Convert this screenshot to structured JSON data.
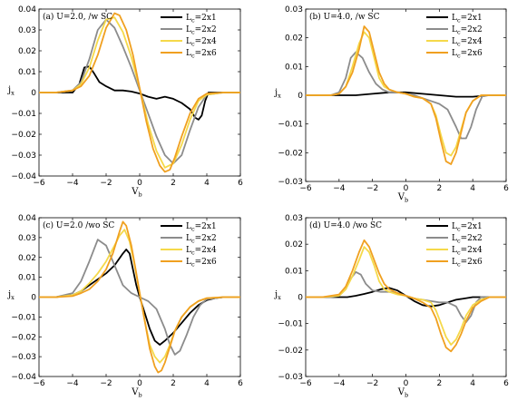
{
  "chart_data": [
    {
      "type": "line",
      "title": "(a) U=2.0, /w SC",
      "xlabel": "V_b",
      "ylabel": "j_x",
      "xlim": [
        -6,
        6
      ],
      "ylim": [
        -0.04,
        0.04
      ],
      "xticks": [
        -6,
        -4,
        -2,
        0,
        2,
        4,
        6
      ],
      "yticks": [
        -0.04,
        -0.03,
        -0.02,
        -0.01,
        0,
        0.01,
        0.02,
        0.03,
        0.04
      ],
      "ytick_labels": [
        "−0.04",
        "−0.03",
        "−0.02",
        "−0.01",
        "0",
        "0.01",
        "0.02",
        "0.03",
        "0.04"
      ],
      "legend_position": "top-right",
      "series": [
        {
          "name": "L_c=2x1",
          "color": "#000000",
          "x": [
            -6,
            -4,
            -3.6,
            -3.3,
            -3.0,
            -2.7,
            -2.4,
            -2.0,
            -1.5,
            -1.0,
            -0.5,
            0,
            0.5,
            1.0,
            1.5,
            2.0,
            2.5,
            3.0,
            3.3,
            3.5,
            3.7,
            3.9,
            4.1,
            6
          ],
          "y": [
            0,
            0,
            0.004,
            0.012,
            0.0125,
            0.009,
            0.005,
            0.003,
            0.001,
            0.001,
            0.0005,
            -0.0005,
            -0.002,
            -0.003,
            -0.002,
            -0.003,
            -0.005,
            -0.008,
            -0.012,
            -0.013,
            -0.011,
            -0.004,
            0,
            0
          ]
        },
        {
          "name": "L_c=2x2",
          "color": "#8c8c8c",
          "x": [
            -6,
            -5,
            -4,
            -3.5,
            -3.0,
            -2.5,
            -2.0,
            -1.5,
            -1.0,
            -0.5,
            0,
            0.5,
            1.0,
            1.5,
            2.0,
            2.5,
            3.0,
            3.5,
            4.0,
            5.0,
            6
          ],
          "y": [
            0,
            0,
            0.001,
            0.005,
            0.016,
            0.03,
            0.035,
            0.031,
            0.022,
            0.012,
            0.001,
            -0.01,
            -0.021,
            -0.03,
            -0.034,
            -0.03,
            -0.018,
            -0.007,
            -0.001,
            0,
            0
          ]
        },
        {
          "name": "L_c=2x4",
          "color": "#f5d94a",
          "x": [
            -6,
            -5,
            -4,
            -3.5,
            -3.0,
            -2.5,
            -2.0,
            -1.5,
            -1.0,
            -0.5,
            0,
            0.5,
            1.0,
            1.5,
            2.0,
            2.5,
            3.0,
            3.5,
            4.0,
            5.0,
            6
          ],
          "y": [
            0,
            0,
            0.001,
            0.004,
            0.012,
            0.025,
            0.035,
            0.036,
            0.029,
            0.017,
            0.002,
            -0.015,
            -0.028,
            -0.036,
            -0.034,
            -0.025,
            -0.013,
            -0.004,
            -0.001,
            0,
            0
          ]
        },
        {
          "name": "L_c=2x6",
          "color": "#f0a020",
          "x": [
            -6,
            -5,
            -4,
            -3.5,
            -3.0,
            -2.5,
            -2.0,
            -1.5,
            -1.2,
            -0.8,
            -0.4,
            0,
            0.4,
            0.8,
            1.2,
            1.5,
            1.8,
            2.1,
            2.5,
            3.0,
            3.5,
            4.0,
            5.0,
            6
          ],
          "y": [
            0,
            0,
            0.001,
            0.003,
            0.008,
            0.018,
            0.031,
            0.038,
            0.037,
            0.03,
            0.018,
            0.002,
            -0.014,
            -0.027,
            -0.035,
            -0.038,
            -0.037,
            -0.031,
            -0.021,
            -0.01,
            -0.003,
            -0.0005,
            0,
            0
          ]
        }
      ]
    },
    {
      "type": "line",
      "title": "(b) U=4.0, /w SC",
      "xlabel": "V_b",
      "ylabel": "j_x",
      "xlim": [
        -6,
        6
      ],
      "ylim": [
        -0.03,
        0.03
      ],
      "xticks": [
        -6,
        -4,
        -2,
        0,
        2,
        4,
        6
      ],
      "yticks": [
        -0.03,
        -0.02,
        -0.01,
        0,
        0.01,
        0.02,
        0.03
      ],
      "ytick_labels": [
        "−0.03",
        "−0.02",
        "−0.01",
        "0",
        "0.01",
        "0.02",
        "0.03"
      ],
      "legend_position": "top-right",
      "series": [
        {
          "name": "L_c=2x1",
          "color": "#000000",
          "x": [
            -6,
            -4,
            -3,
            -2,
            -1,
            0,
            1,
            2,
            3,
            4,
            5,
            6
          ],
          "y": [
            0,
            0,
            0,
            0.0005,
            0.001,
            0.001,
            0.0005,
            0,
            -0.0005,
            -0.0005,
            0,
            0
          ]
        },
        {
          "name": "L_c=2x2",
          "color": "#8c8c8c",
          "x": [
            -6,
            -4.5,
            -4.0,
            -3.6,
            -3.3,
            -3.0,
            -2.6,
            -2.2,
            -1.8,
            -1.4,
            -1.0,
            -0.5,
            0,
            0.5,
            1.0,
            1.5,
            2.0,
            2.5,
            3.0,
            3.3,
            3.6,
            3.9,
            4.2,
            4.6,
            6
          ],
          "y": [
            0,
            0,
            0.001,
            0.006,
            0.013,
            0.015,
            0.013,
            0.008,
            0.004,
            0.002,
            0.001,
            0.001,
            0.0005,
            0,
            -0.001,
            -0.002,
            -0.003,
            -0.005,
            -0.011,
            -0.015,
            -0.015,
            -0.011,
            -0.005,
            0,
            0
          ]
        },
        {
          "name": "L_c=2x4",
          "color": "#f5d94a",
          "x": [
            -6,
            -4.5,
            -4.0,
            -3.6,
            -3.2,
            -2.8,
            -2.5,
            -2.2,
            -1.9,
            -1.6,
            -1.3,
            -1.0,
            -0.5,
            0,
            0.5,
            1.0,
            1.5,
            1.8,
            2.1,
            2.4,
            2.7,
            3.0,
            3.3,
            3.6,
            4.0,
            4.5,
            6
          ],
          "y": [
            0,
            0,
            0.0005,
            0.003,
            0.01,
            0.018,
            0.022,
            0.02,
            0.013,
            0.006,
            0.003,
            0.002,
            0.001,
            0.0005,
            -0.0005,
            -0.001,
            -0.003,
            -0.007,
            -0.014,
            -0.02,
            -0.021,
            -0.018,
            -0.012,
            -0.006,
            -0.002,
            0,
            0
          ]
        },
        {
          "name": "L_c=2x6",
          "color": "#f0a020",
          "x": [
            -6,
            -4.5,
            -4.0,
            -3.6,
            -3.2,
            -2.8,
            -2.5,
            -2.2,
            -1.9,
            -1.6,
            -1.3,
            -1.0,
            -0.5,
            0,
            0.5,
            1.0,
            1.5,
            1.8,
            2.1,
            2.4,
            2.7,
            3.0,
            3.3,
            3.6,
            4.0,
            4.5,
            6
          ],
          "y": [
            0,
            0,
            0.0005,
            0.003,
            0.008,
            0.016,
            0.024,
            0.022,
            0.015,
            0.008,
            0.004,
            0.002,
            0.001,
            0.0005,
            -0.0005,
            -0.001,
            -0.003,
            -0.008,
            -0.016,
            -0.023,
            -0.024,
            -0.02,
            -0.013,
            -0.006,
            -0.002,
            0,
            0
          ]
        }
      ]
    },
    {
      "type": "line",
      "title": "(c) U=2.0 /wo SC",
      "xlabel": "V_b",
      "ylabel": "j_x",
      "xlim": [
        -6,
        6
      ],
      "ylim": [
        -0.04,
        0.04
      ],
      "xticks": [
        -6,
        -4,
        -2,
        0,
        2,
        4,
        6
      ],
      "yticks": [
        -0.04,
        -0.03,
        -0.02,
        -0.01,
        0,
        0.01,
        0.02,
        0.03,
        0.04
      ],
      "ytick_labels": [
        "−0.04",
        "−0.03",
        "−0.02",
        "−0.01",
        "0",
        "0.01",
        "0.02",
        "0.03",
        "0.04"
      ],
      "legend_position": "top-right",
      "series": [
        {
          "name": "L_c=2x1",
          "color": "#000000",
          "x": [
            -6,
            -5,
            -4,
            -3.5,
            -3.0,
            -2.5,
            -2.0,
            -1.5,
            -1.0,
            -0.8,
            -0.6,
            -0.4,
            -0.2,
            0,
            0.3,
            0.6,
            0.9,
            1.2,
            1.5,
            2.0,
            2.5,
            3.0,
            3.5,
            4.0,
            4.5,
            5.0,
            6
          ],
          "y": [
            0,
            0,
            0.001,
            0.003,
            0.006,
            0.009,
            0.012,
            0.016,
            0.022,
            0.024,
            0.022,
            0.014,
            0.006,
            0,
            -0.008,
            -0.016,
            -0.022,
            -0.024,
            -0.022,
            -0.018,
            -0.013,
            -0.008,
            -0.004,
            -0.0015,
            -0.0005,
            0,
            0
          ]
        },
        {
          "name": "L_c=2x2",
          "color": "#8c8c8c",
          "x": [
            -6,
            -5,
            -4,
            -3.5,
            -3.0,
            -2.5,
            -2.0,
            -1.5,
            -1.0,
            -0.5,
            0,
            0.5,
            1.0,
            1.5,
            1.8,
            2.1,
            2.4,
            2.8,
            3.2,
            3.6,
            4.0,
            5.0,
            6
          ],
          "y": [
            0,
            0,
            0.002,
            0.008,
            0.018,
            0.029,
            0.026,
            0.016,
            0.006,
            0.002,
            0,
            -0.002,
            -0.006,
            -0.016,
            -0.024,
            -0.029,
            -0.027,
            -0.019,
            -0.01,
            -0.004,
            -0.001,
            0,
            0
          ]
        },
        {
          "name": "L_c=2x4",
          "color": "#f5d94a",
          "x": [
            -6,
            -5,
            -4,
            -3.5,
            -3.0,
            -2.5,
            -2.0,
            -1.5,
            -1.2,
            -0.9,
            -0.6,
            -0.3,
            0,
            0.3,
            0.6,
            0.9,
            1.2,
            1.5,
            1.8,
            2.1,
            2.5,
            3.0,
            3.5,
            4.0,
            5.0,
            6
          ],
          "y": [
            0,
            0,
            0.001,
            0.003,
            0.007,
            0.012,
            0.018,
            0.026,
            0.031,
            0.034,
            0.028,
            0.016,
            0.002,
            -0.012,
            -0.024,
            -0.03,
            -0.033,
            -0.03,
            -0.024,
            -0.017,
            -0.01,
            -0.005,
            -0.002,
            -0.0005,
            0,
            0
          ]
        },
        {
          "name": "L_c=2x6",
          "color": "#f0a020",
          "x": [
            -6,
            -5,
            -4,
            -3.5,
            -3.0,
            -2.5,
            -2.0,
            -1.6,
            -1.2,
            -1.0,
            -0.8,
            -0.5,
            -0.2,
            0,
            0.3,
            0.6,
            0.9,
            1.1,
            1.3,
            1.5,
            1.8,
            2.1,
            2.5,
            3.0,
            3.5,
            4.0,
            5.0,
            6
          ],
          "y": [
            0,
            0,
            0.0005,
            0.002,
            0.004,
            0.008,
            0.014,
            0.022,
            0.033,
            0.038,
            0.036,
            0.026,
            0.012,
            0.002,
            -0.012,
            -0.026,
            -0.035,
            -0.038,
            -0.037,
            -0.033,
            -0.025,
            -0.017,
            -0.01,
            -0.005,
            -0.002,
            -0.0005,
            0,
            0
          ]
        }
      ]
    },
    {
      "type": "line",
      "title": "(d) U=4.0 /wo SC",
      "xlabel": "V_b",
      "ylabel": "j_x",
      "xlim": [
        -6,
        6
      ],
      "ylim": [
        -0.03,
        0.03
      ],
      "xticks": [
        -6,
        -4,
        -2,
        0,
        2,
        4,
        6
      ],
      "yticks": [
        -0.03,
        -0.02,
        -0.01,
        0,
        0.01,
        0.02,
        0.03
      ],
      "ytick_labels": [
        "−0.03",
        "−0.02",
        "−0.01",
        "0",
        "0.01",
        "0.02",
        "0.03"
      ],
      "legend_position": "top-right",
      "series": [
        {
          "name": "L_c=2x1",
          "color": "#000000",
          "x": [
            -6,
            -5,
            -4,
            -3.5,
            -3.0,
            -2.5,
            -2.0,
            -1.5,
            -1.0,
            -0.5,
            0,
            0.5,
            1.0,
            1.5,
            2.0,
            2.5,
            3.0,
            3.5,
            4.0,
            4.5,
            5.0,
            6
          ],
          "y": [
            0,
            0,
            0,
            0,
            0.0005,
            0.0012,
            0.002,
            0.003,
            0.0035,
            0.0025,
            0.0005,
            -0.0015,
            -0.003,
            -0.0035,
            -0.003,
            -0.002,
            -0.001,
            -0.0005,
            0,
            0,
            0,
            0
          ]
        },
        {
          "name": "L_c=2x2",
          "color": "#8c8c8c",
          "x": [
            -6,
            -4.5,
            -4.0,
            -3.6,
            -3.3,
            -3.0,
            -2.7,
            -2.4,
            -2.0,
            -1.5,
            -1.0,
            -0.5,
            0,
            0.5,
            1.0,
            1.5,
            2.0,
            2.5,
            3.0,
            3.3,
            3.6,
            3.9,
            4.2,
            4.5,
            6
          ],
          "y": [
            0,
            0,
            0.0005,
            0.003,
            0.007,
            0.0095,
            0.0085,
            0.005,
            0.0025,
            0.002,
            0.002,
            0.0015,
            0.0005,
            -0.0005,
            -0.001,
            -0.0015,
            -0.002,
            -0.002,
            -0.0035,
            -0.007,
            -0.0095,
            -0.007,
            -0.002,
            0,
            0
          ]
        },
        {
          "name": "L_c=2x4",
          "color": "#f5d94a",
          "x": [
            -6,
            -5,
            -4.0,
            -3.6,
            -3.2,
            -2.8,
            -2.5,
            -2.2,
            -1.9,
            -1.6,
            -1.3,
            -1.0,
            -0.5,
            0,
            0.5,
            1.0,
            1.5,
            1.8,
            2.1,
            2.4,
            2.7,
            3.0,
            3.3,
            3.6,
            4.0,
            4.5,
            5.0,
            6
          ],
          "y": [
            0,
            0,
            0.0005,
            0.003,
            0.008,
            0.014,
            0.019,
            0.017,
            0.012,
            0.006,
            0.003,
            0.002,
            0.001,
            0.0005,
            -0.0005,
            -0.001,
            -0.002,
            -0.005,
            -0.01,
            -0.015,
            -0.018,
            -0.016,
            -0.012,
            -0.007,
            -0.003,
            -0.001,
            0,
            0
          ]
        },
        {
          "name": "L_c=2x6",
          "color": "#f0a020",
          "x": [
            -6,
            -5,
            -4.0,
            -3.6,
            -3.2,
            -2.8,
            -2.5,
            -2.2,
            -1.9,
            -1.6,
            -1.3,
            -1.0,
            -0.5,
            0,
            0.5,
            1.0,
            1.5,
            1.8,
            2.1,
            2.4,
            2.7,
            3.0,
            3.3,
            3.6,
            4.0,
            4.5,
            5.0,
            6
          ],
          "y": [
            0,
            0,
            0.001,
            0.004,
            0.01,
            0.017,
            0.0215,
            0.019,
            0.014,
            0.009,
            0.005,
            0.003,
            0.0015,
            0.0005,
            -0.0005,
            -0.002,
            -0.004,
            -0.008,
            -0.014,
            -0.019,
            -0.0205,
            -0.018,
            -0.014,
            -0.009,
            -0.004,
            -0.0015,
            0,
            0
          ]
        }
      ]
    }
  ]
}
